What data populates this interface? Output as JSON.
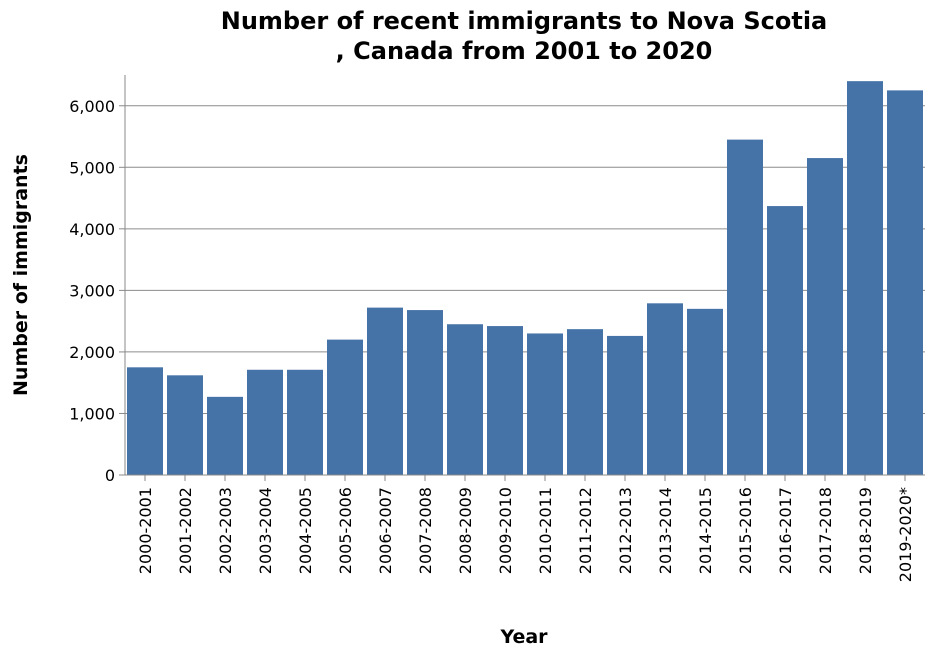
{
  "chart_data": {
    "type": "bar",
    "title": [
      "Number of recent immigrants to Nova Scotia",
      ", Canada from 2001 to 2020"
    ],
    "xlabel": "Year",
    "ylabel": "Number of immigrants",
    "ylim": [
      0,
      6500
    ],
    "yticks": [
      0,
      1000,
      2000,
      3000,
      4000,
      5000,
      6000
    ],
    "ytick_labels": [
      "0",
      "1,000",
      "2,000",
      "3,000",
      "4,000",
      "5,000",
      "6,000"
    ],
    "grid": true,
    "legend": "none",
    "bar_color": "#4572a7",
    "categories": [
      "2000-2001",
      "2001-2002",
      "2002-2003",
      "2003-2004",
      "2004-2005",
      "2005-2006",
      "2006-2007",
      "2007-2008",
      "2008-2009",
      "2009-2010",
      "2010-2011",
      "2011-2012",
      "2012-2013",
      "2013-2014",
      "2014-2015",
      "2015-2016",
      "2016-2017",
      "2017-2018",
      "2018-2019",
      "2019-2020*"
    ],
    "values": [
      1750,
      1620,
      1270,
      1710,
      1710,
      2200,
      2720,
      2680,
      2450,
      2420,
      2300,
      2370,
      2260,
      2790,
      2700,
      5450,
      4370,
      5150,
      6400,
      6250
    ]
  }
}
